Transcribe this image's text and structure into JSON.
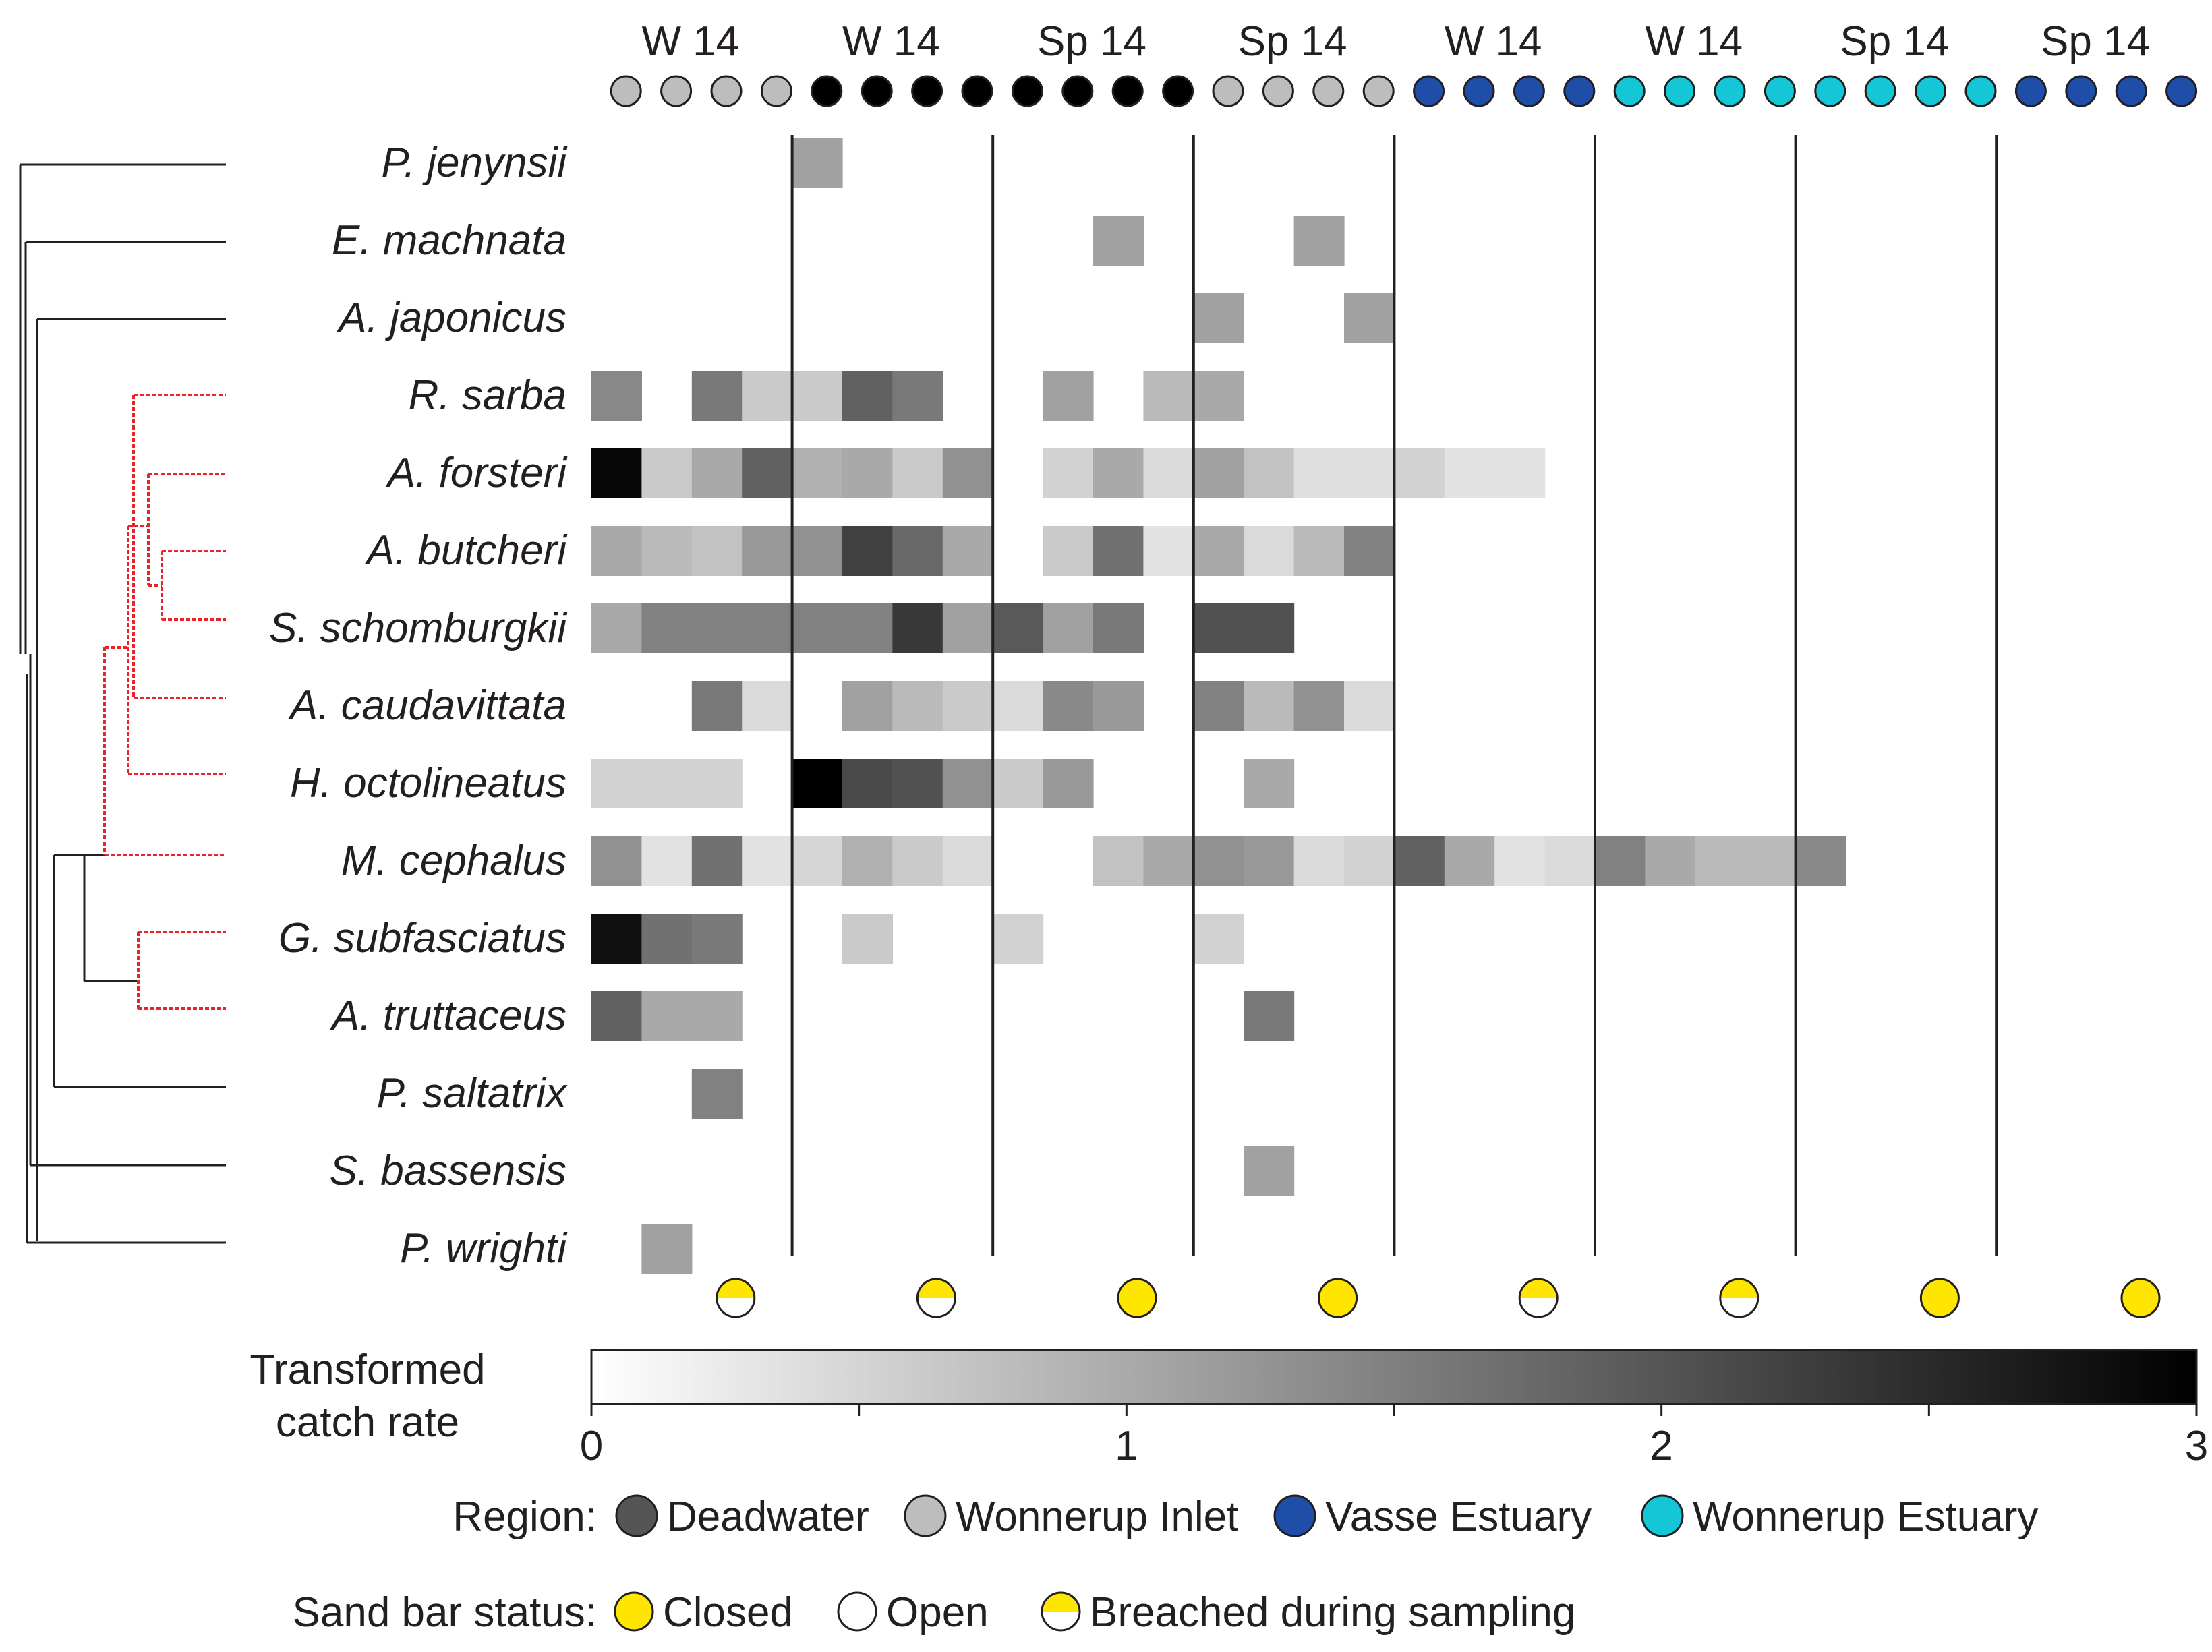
{
  "chart_data": {
    "type": "heatmap",
    "title": "",
    "season_labels": [
      "W 14",
      "W 14",
      "Sp 14",
      "Sp 14",
      "W 14",
      "W 14",
      "Sp 14",
      "Sp 14"
    ],
    "region_sequence": [
      "Wonnerup Inlet",
      "Wonnerup Inlet",
      "Wonnerup Inlet",
      "Wonnerup Inlet",
      "Deadwater",
      "Deadwater",
      "Deadwater",
      "Deadwater",
      "Deadwater",
      "Deadwater",
      "Deadwater",
      "Deadwater",
      "Wonnerup Inlet",
      "Wonnerup Inlet",
      "Wonnerup Inlet",
      "Wonnerup Inlet",
      "Vasse Estuary",
      "Vasse Estuary",
      "Vasse Estuary",
      "Vasse Estuary",
      "Wonnerup Estuary",
      "Wonnerup Estuary",
      "Wonnerup Estuary",
      "Wonnerup Estuary",
      "Wonnerup Estuary",
      "Wonnerup Estuary",
      "Wonnerup Estuary",
      "Wonnerup Estuary",
      "Vasse Estuary",
      "Vasse Estuary",
      "Vasse Estuary",
      "Vasse Estuary"
    ],
    "group_sand_bar_status": [
      "Breached during sampling",
      "Breached during sampling",
      "Closed",
      "Closed",
      "Breached during sampling",
      "Breached during sampling",
      "Closed",
      "Closed"
    ],
    "species": [
      "P. jenynsii",
      "E. machnata",
      "A. japonicus",
      "R. sarba",
      "A. forsteri",
      "A. butcheri",
      "S. schomburgkii",
      "A. caudavittata",
      "H. octolineatus",
      "M. cephalus",
      "G. subfasciatus",
      "A. truttaceus",
      "P. saltatrix",
      "S. bassensis",
      "P. wrighti"
    ],
    "species_clade": [
      "outgroup",
      "outgroup",
      "outgroup",
      "estuarine",
      "estuarine",
      "estuarine",
      "estuarine",
      "estuarine",
      "estuarine",
      "estuarine",
      "estuarine",
      "estuarine",
      "outgroup",
      "outgroup",
      "outgroup"
    ],
    "values": [
      [
        0,
        0,
        0,
        0,
        1.0,
        0,
        0,
        0,
        0,
        0,
        0,
        0,
        0,
        0,
        0,
        0,
        0,
        0,
        0,
        0,
        0,
        0,
        0,
        0,
        0,
        0,
        0,
        0,
        0,
        0,
        0,
        0
      ],
      [
        0,
        0,
        0,
        0,
        0,
        0,
        0,
        0,
        0,
        0,
        1.0,
        0,
        0,
        0,
        1.0,
        0,
        0,
        0,
        0,
        0,
        0,
        0,
        0,
        0,
        0,
        0,
        0,
        0,
        0,
        0,
        0,
        0
      ],
      [
        0,
        0,
        0,
        0,
        0,
        0,
        0,
        0,
        0,
        0,
        0,
        0,
        1.0,
        0,
        0,
        1.0,
        0,
        0,
        0,
        0,
        0,
        0,
        0,
        0,
        0,
        0,
        0,
        0,
        0,
        0,
        0,
        0
      ],
      [
        1.3,
        0,
        1.5,
        0.5,
        0.5,
        1.8,
        1.5,
        0,
        0,
        1.0,
        0,
        0.7,
        0.9,
        0,
        0,
        0,
        0,
        0,
        0,
        0,
        0,
        0,
        0,
        0,
        0,
        0,
        0,
        0,
        0,
        0,
        0,
        0
      ],
      [
        2.9,
        0.5,
        0.9,
        1.8,
        0.8,
        0.9,
        0.5,
        1.2,
        0,
        0.4,
        0.9,
        0.3,
        1.0,
        0.6,
        0.25,
        0.25,
        0.4,
        0.2,
        0.2,
        0,
        0,
        0,
        0,
        0,
        0,
        0,
        0,
        0,
        0,
        0,
        0,
        0
      ],
      [
        0.9,
        0.7,
        0.6,
        1.1,
        1.2,
        2.2,
        1.7,
        0.9,
        0,
        0.5,
        1.6,
        0.2,
        0.9,
        0.3,
        0.7,
        1.4,
        0,
        0,
        0,
        0,
        0,
        0,
        0,
        0,
        0,
        0,
        0,
        0,
        0,
        0,
        0,
        0
      ],
      [
        0.9,
        1.4,
        1.4,
        1.4,
        1.4,
        1.4,
        2.3,
        1.0,
        1.9,
        1.0,
        1.5,
        0,
        2.0,
        2.0,
        0,
        0,
        0,
        0,
        0,
        0,
        0,
        0,
        0,
        0,
        0,
        0,
        0,
        0,
        0,
        0,
        0,
        0
      ],
      [
        0,
        0,
        1.5,
        0.3,
        0,
        1.0,
        0.7,
        0.5,
        0.3,
        1.3,
        1.1,
        0,
        1.4,
        0.7,
        1.2,
        0.3,
        0,
        0,
        0,
        0,
        0,
        0,
        0,
        0,
        0,
        0,
        0,
        0,
        0,
        0,
        0,
        0
      ],
      [
        0.4,
        0.4,
        0.4,
        0,
        3.0,
        2.1,
        2.0,
        1.2,
        0.5,
        1.1,
        0,
        0,
        0,
        0.9,
        0,
        0,
        0,
        0,
        0,
        0,
        0,
        0,
        0,
        0,
        0,
        0,
        0,
        0,
        0,
        0,
        0,
        0
      ],
      [
        1.2,
        0.2,
        1.6,
        0.2,
        0.35,
        0.8,
        0.5,
        0.3,
        0,
        0,
        0.6,
        0.9,
        1.2,
        1.1,
        0.3,
        0.4,
        1.8,
        0.9,
        0.2,
        0.3,
        1.4,
        0.9,
        0.7,
        0.7,
        1.3,
        0,
        0,
        0,
        0,
        0,
        0,
        0
      ],
      [
        2.8,
        1.6,
        1.5,
        0,
        0,
        0.5,
        0,
        0,
        0.4,
        0,
        0,
        0,
        0.4,
        0,
        0,
        0,
        0,
        0,
        0,
        0,
        0,
        0,
        0,
        0,
        0,
        0,
        0,
        0,
        0,
        0,
        0,
        0
      ],
      [
        1.8,
        0.9,
        0.9,
        0,
        0,
        0,
        0,
        0,
        0,
        0,
        0,
        0,
        0,
        1.5,
        0,
        0,
        0,
        0,
        0,
        0,
        0,
        0,
        0,
        0,
        0,
        0,
        0,
        0,
        0,
        0,
        0,
        0
      ],
      [
        0,
        0,
        1.4,
        0,
        0,
        0,
        0,
        0,
        0,
        0,
        0,
        0,
        0,
        0,
        0,
        0,
        0,
        0,
        0,
        0,
        0,
        0,
        0,
        0,
        0,
        0,
        0,
        0,
        0,
        0,
        0,
        0
      ],
      [
        0,
        0,
        0,
        0,
        0,
        0,
        0,
        0,
        0,
        0,
        0,
        0,
        0,
        1.0,
        0,
        0,
        0,
        0,
        0,
        0,
        0,
        0,
        0,
        0,
        0,
        0,
        0,
        0,
        0,
        0,
        0,
        0
      ],
      [
        0,
        1.0,
        0,
        0,
        0,
        0,
        0,
        0,
        0,
        0,
        0,
        0,
        0,
        0,
        0,
        0,
        0,
        0,
        0,
        0,
        0,
        0,
        0,
        0,
        0,
        0,
        0,
        0,
        0,
        0,
        0,
        0
      ]
    ],
    "colorbar": {
      "title_line1": "Transformed",
      "title_line2": "catch rate",
      "range": [
        0,
        3
      ],
      "tick_labels": [
        "0",
        "1",
        "2",
        "3"
      ]
    },
    "legend_region": {
      "label": "Region:",
      "items": [
        {
          "name": "Deadwater",
          "color": "#555555"
        },
        {
          "name": "Wonnerup Inlet",
          "color": "#bdbdbd"
        },
        {
          "name": "Vasse Estuary",
          "color": "#1f4ea8"
        },
        {
          "name": "Wonnerup Estuary",
          "color": "#14c6d6"
        }
      ]
    },
    "legend_sand_bar": {
      "label": "Sand bar status:",
      "items": [
        {
          "name": "Closed",
          "kind": "closed"
        },
        {
          "name": "Open",
          "kind": "open"
        },
        {
          "name": "Breached during sampling",
          "kind": "breached"
        }
      ]
    }
  },
  "colors": {
    "clade_line": "#e8232a",
    "tree_line": "#231f20",
    "closed_fill": "#ffe600",
    "deadwater_circle": "#000000"
  }
}
